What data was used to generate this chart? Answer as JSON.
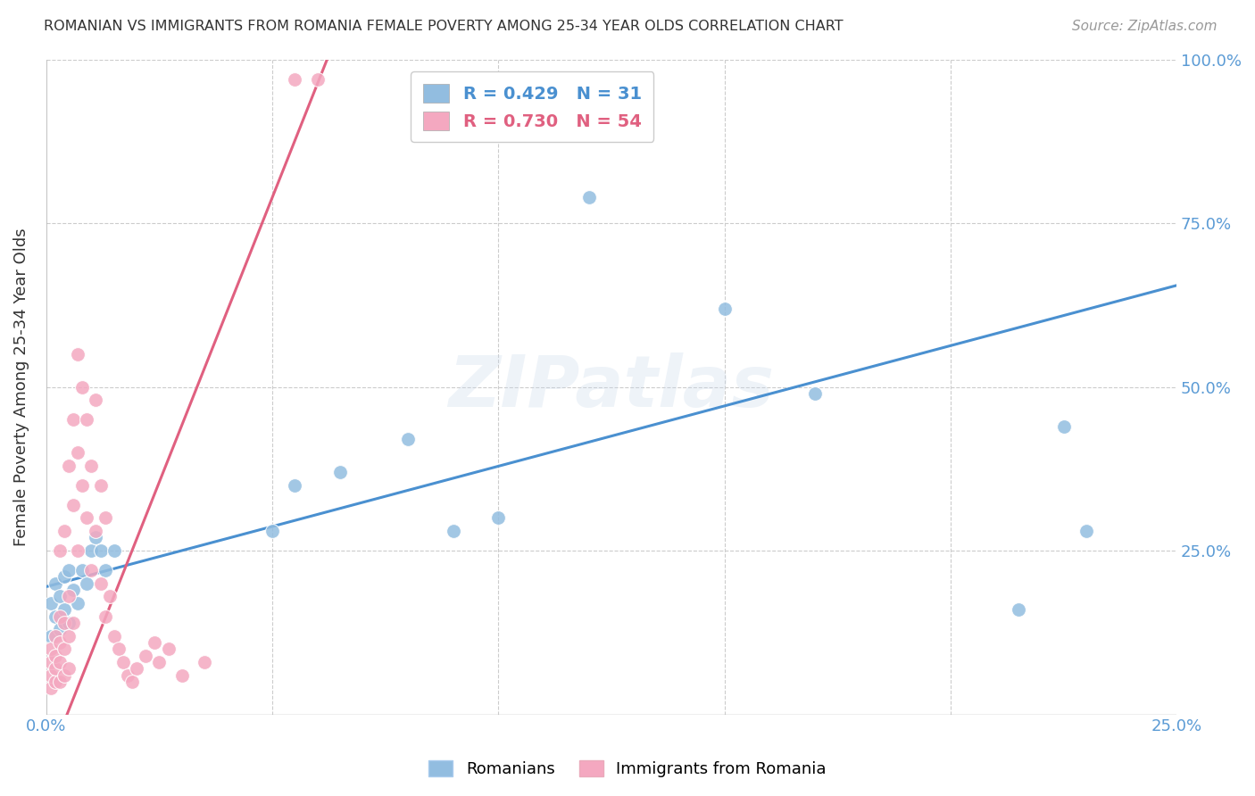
{
  "title": "ROMANIAN VS IMMIGRANTS FROM ROMANIA FEMALE POVERTY AMONG 25-34 YEAR OLDS CORRELATION CHART",
  "source": "Source: ZipAtlas.com",
  "ylabel": "Female Poverty Among 25-34 Year Olds",
  "xlim": [
    0.0,
    0.25
  ],
  "ylim": [
    0.0,
    1.0
  ],
  "xtick_vals": [
    0.0,
    0.05,
    0.1,
    0.15,
    0.2,
    0.25
  ],
  "xtick_labels": [
    "0.0%",
    "",
    "",
    "",
    "",
    "25.0%"
  ],
  "ytick_vals": [
    0.0,
    0.25,
    0.5,
    0.75,
    1.0
  ],
  "ytick_labels": [
    "",
    "25.0%",
    "50.0%",
    "75.0%",
    "100.0%"
  ],
  "romanians_R": 0.429,
  "romanians_N": 31,
  "immigrants_R": 0.73,
  "immigrants_N": 54,
  "blue_color": "#92BDE0",
  "pink_color": "#F4A8C0",
  "blue_line_color": "#4A90D0",
  "pink_line_color": "#E06080",
  "axis_color": "#5B9BD5",
  "grid_color": "#CCCCCC",
  "title_color": "#333333",
  "watermark": "ZIPatlas",
  "romanians_x": [
    0.001,
    0.001,
    0.002,
    0.002,
    0.003,
    0.003,
    0.004,
    0.004,
    0.005,
    0.005,
    0.006,
    0.007,
    0.008,
    0.009,
    0.01,
    0.011,
    0.012,
    0.013,
    0.015,
    0.05,
    0.055,
    0.065,
    0.08,
    0.09,
    0.1,
    0.12,
    0.15,
    0.17,
    0.215,
    0.225,
    0.23
  ],
  "romanians_y": [
    0.17,
    0.12,
    0.15,
    0.2,
    0.13,
    0.18,
    0.16,
    0.21,
    0.14,
    0.22,
    0.19,
    0.17,
    0.22,
    0.2,
    0.25,
    0.27,
    0.25,
    0.22,
    0.25,
    0.28,
    0.35,
    0.37,
    0.42,
    0.28,
    0.3,
    0.79,
    0.62,
    0.49,
    0.16,
    0.44,
    0.28
  ],
  "immigrants_x": [
    0.001,
    0.001,
    0.001,
    0.001,
    0.002,
    0.002,
    0.002,
    0.002,
    0.003,
    0.003,
    0.003,
    0.003,
    0.003,
    0.004,
    0.004,
    0.004,
    0.004,
    0.005,
    0.005,
    0.005,
    0.005,
    0.006,
    0.006,
    0.006,
    0.007,
    0.007,
    0.007,
    0.008,
    0.008,
    0.009,
    0.009,
    0.01,
    0.01,
    0.011,
    0.011,
    0.012,
    0.012,
    0.013,
    0.013,
    0.014,
    0.015,
    0.016,
    0.017,
    0.018,
    0.019,
    0.02,
    0.022,
    0.024,
    0.025,
    0.027,
    0.03,
    0.035,
    0.055,
    0.06
  ],
  "immigrants_y": [
    0.04,
    0.06,
    0.08,
    0.1,
    0.05,
    0.07,
    0.09,
    0.12,
    0.05,
    0.08,
    0.11,
    0.15,
    0.25,
    0.06,
    0.1,
    0.14,
    0.28,
    0.07,
    0.12,
    0.18,
    0.38,
    0.14,
    0.32,
    0.45,
    0.25,
    0.4,
    0.55,
    0.35,
    0.5,
    0.3,
    0.45,
    0.22,
    0.38,
    0.28,
    0.48,
    0.2,
    0.35,
    0.15,
    0.3,
    0.18,
    0.12,
    0.1,
    0.08,
    0.06,
    0.05,
    0.07,
    0.09,
    0.11,
    0.08,
    0.1,
    0.06,
    0.08,
    0.97,
    0.97
  ]
}
